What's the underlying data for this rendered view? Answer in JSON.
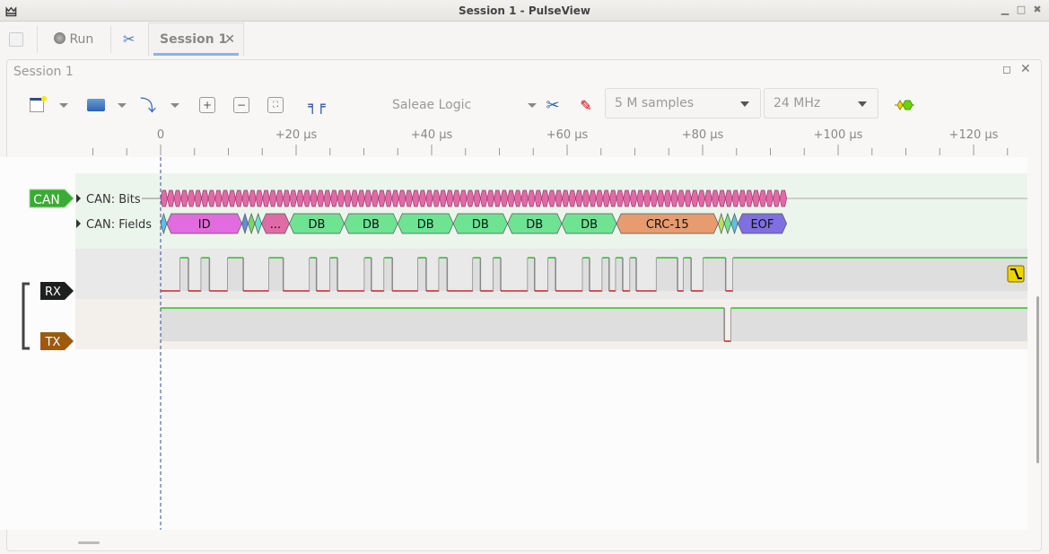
{
  "window": {
    "title": "Session 1 - PulseView"
  },
  "tabs": {
    "run_label": "Run",
    "session_label": "Session 1",
    "close": "✕"
  },
  "panel": {
    "title": "Session 1"
  },
  "toolbar": {
    "device": "Saleae Logic",
    "samples": "5 M samples",
    "samplerate": "24 MHz"
  },
  "ruler": {
    "unit": "µs",
    "major_step_us": 20,
    "minor_step_us": 5,
    "labels": [
      "0",
      "+20 µs",
      "+40 µs",
      "+60 µs",
      "+80 µs",
      "+100 µs",
      "+120 µs"
    ]
  },
  "colors": {
    "can_badge": "#3aab34",
    "rx_badge": "#1e1f1f",
    "tx_badge": "#9c5a0f",
    "high": "#00c000",
    "low": "#cc0000",
    "bits": "#e06aa6",
    "trigger": "#f0d400"
  },
  "decoder": {
    "badge": "CAN",
    "rows": [
      {
        "label": "CAN: Bits"
      },
      {
        "label": "CAN: Fields"
      }
    ],
    "bit_period_us": 1,
    "frame_end_us": 92.4,
    "fields": [
      {
        "text": "",
        "start": 0,
        "end": 0.9,
        "color": "#5bc0e6"
      },
      {
        "text": "ID",
        "start": 0.9,
        "end": 12.0,
        "color": "#e36be0"
      },
      {
        "text": "",
        "start": 12.0,
        "end": 12.9,
        "color": "#5e8ee0"
      },
      {
        "text": "",
        "start": 12.9,
        "end": 13.9,
        "color": "#7cd660"
      },
      {
        "text": "",
        "start": 13.9,
        "end": 14.9,
        "color": "#6ae0cc"
      },
      {
        "text": "...",
        "start": 14.9,
        "end": 19.0,
        "color": "#e06aa6"
      },
      {
        "text": "DB",
        "start": 19.0,
        "end": 27.1,
        "color": "#6ee392"
      },
      {
        "text": "DB",
        "start": 27.1,
        "end": 35.0,
        "color": "#6ee392"
      },
      {
        "text": "DB",
        "start": 35.0,
        "end": 43.2,
        "color": "#6ee392"
      },
      {
        "text": "DB",
        "start": 43.2,
        "end": 51.2,
        "color": "#6ee392"
      },
      {
        "text": "DB",
        "start": 51.2,
        "end": 59.2,
        "color": "#6ee392"
      },
      {
        "text": "DB",
        "start": 59.2,
        "end": 67.3,
        "color": "#6ee392"
      },
      {
        "text": "CRC-15",
        "start": 67.3,
        "end": 82.3,
        "color": "#e89b6e"
      },
      {
        "text": "",
        "start": 82.3,
        "end": 83.2,
        "color": "#b8e060"
      },
      {
        "text": "",
        "start": 83.2,
        "end": 84.2,
        "color": "#6ee392"
      },
      {
        "text": "",
        "start": 84.2,
        "end": 85.2,
        "color": "#5bc0e6"
      },
      {
        "text": "EOF",
        "start": 85.2,
        "end": 92.4,
        "color": "#7f6fe0"
      }
    ]
  },
  "channels": [
    {
      "name": "RX",
      "initial": 0,
      "edges_us": [
        2.9,
        4.1,
        6.0,
        7.2,
        9.9,
        12.2,
        16.0,
        18.1,
        22.0,
        23.0,
        25.0,
        26.1,
        30.1,
        31.1,
        33.0,
        34.2,
        38.0,
        39.2,
        41.1,
        42.3,
        46.1,
        47.2,
        49.1,
        50.2,
        54.2,
        55.2,
        57.2,
        58.3,
        62.3,
        63.3,
        65.2,
        66.2,
        67.2,
        68.2,
        69.3,
        70.2,
        73.2,
        76.3,
        77.2,
        78.3,
        80.1,
        83.4,
        84.5
      ],
      "trigger": "falling-edge"
    },
    {
      "name": "TX",
      "initial": 1,
      "edges_us": [
        83.2,
        84.2
      ]
    }
  ]
}
